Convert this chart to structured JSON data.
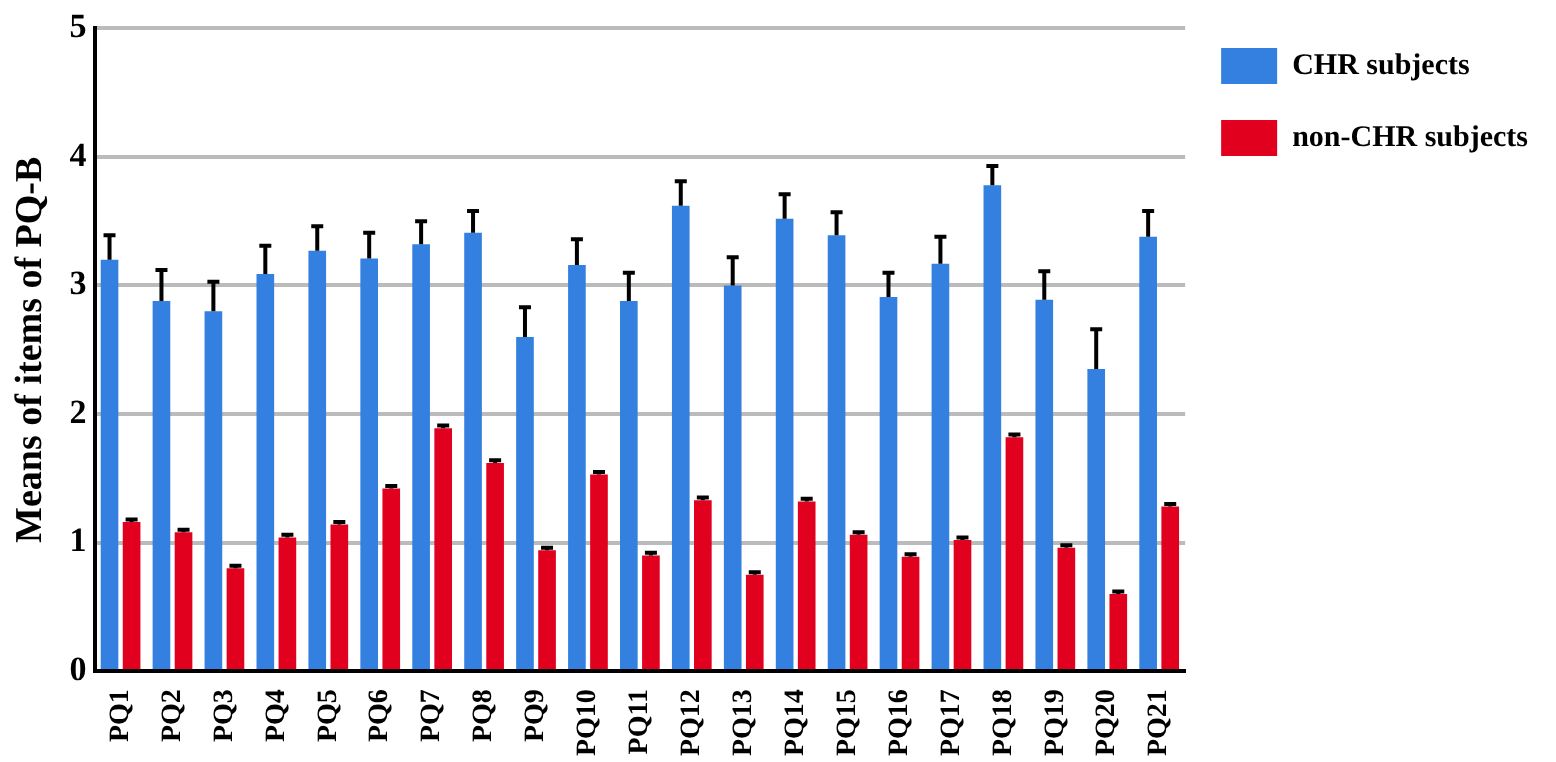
{
  "chart_data": {
    "type": "bar",
    "ylabel": "Means of items of PQ-B",
    "categories": [
      "PQ1",
      "PQ2",
      "PQ3",
      "PQ4",
      "PQ5",
      "PQ6",
      "PQ7",
      "PQ8",
      "PQ9",
      "PQ10",
      "PQ11",
      "PQ12",
      "PQ13",
      "PQ14",
      "PQ15",
      "PQ16",
      "PQ17",
      "PQ18",
      "PQ19",
      "PQ20",
      "PQ21"
    ],
    "series": [
      {
        "name": "CHR subjects",
        "color": "#3380e0",
        "values": [
          3.2,
          2.88,
          2.8,
          3.09,
          3.27,
          3.21,
          3.32,
          3.41,
          2.6,
          3.16,
          2.88,
          3.62,
          3.0,
          3.52,
          3.39,
          2.91,
          3.17,
          3.78,
          2.89,
          2.35,
          3.38
        ],
        "errors": [
          0.19,
          0.24,
          0.23,
          0.22,
          0.19,
          0.2,
          0.18,
          0.17,
          0.23,
          0.2,
          0.22,
          0.19,
          0.22,
          0.19,
          0.18,
          0.19,
          0.21,
          0.15,
          0.22,
          0.31,
          0.2
        ]
      },
      {
        "name": "non-CHR subjects",
        "color": "#e2001f",
        "values": [
          1.16,
          1.08,
          0.8,
          1.04,
          1.14,
          1.42,
          1.89,
          1.62,
          0.94,
          1.53,
          0.9,
          1.33,
          0.75,
          1.32,
          1.06,
          0.89,
          1.02,
          1.82,
          0.96,
          0.6,
          1.28
        ],
        "errors": [
          0.02,
          0.02,
          0.02,
          0.02,
          0.02,
          0.02,
          0.02,
          0.02,
          0.02,
          0.02,
          0.02,
          0.02,
          0.02,
          0.02,
          0.02,
          0.02,
          0.02,
          0.02,
          0.02,
          0.02,
          0.02
        ]
      }
    ],
    "ylim": [
      0,
      5
    ],
    "yticks": [
      0,
      1,
      2,
      3,
      4,
      5
    ],
    "grid": "y",
    "legend": "top right"
  }
}
